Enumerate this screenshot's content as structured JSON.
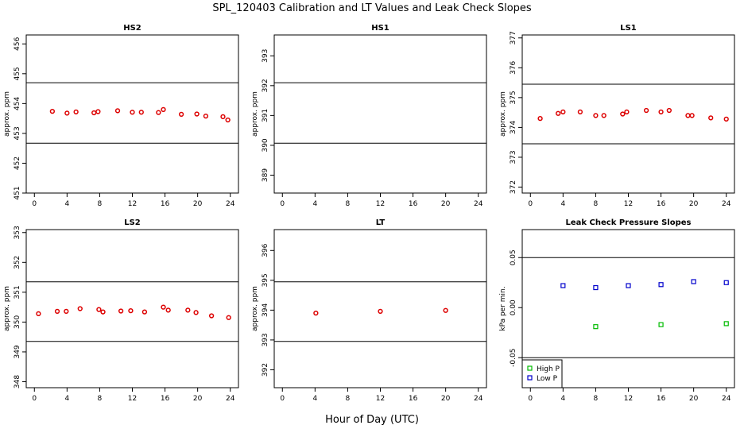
{
  "figure": {
    "title": "SPL_120403  Calibration and LT Values and Leak Check Slopes",
    "xlabel": "Hour of Day (UTC)"
  },
  "chart_data": [
    {
      "type": "scatter",
      "title": "HS2",
      "ylabel": "approx. ppm",
      "xlim": [
        -1,
        25
      ],
      "ylim": [
        451,
        456.3
      ],
      "xticks": [
        0,
        4,
        8,
        12,
        16,
        20,
        24
      ],
      "yticks": [
        451,
        452,
        453,
        454,
        455,
        456
      ],
      "hlines": [
        454.7,
        452.67
      ],
      "series": [
        {
          "marker": "circle",
          "color": "#dd0000",
          "points": [
            [
              2.2,
              453.74
            ],
            [
              4,
              453.68
            ],
            [
              5.1,
              453.72
            ],
            [
              7.3,
              453.69
            ],
            [
              7.8,
              453.73
            ],
            [
              10.2,
              453.76
            ],
            [
              12,
              453.71
            ],
            [
              13.1,
              453.71
            ],
            [
              15.2,
              453.7
            ],
            [
              15.8,
              453.8
            ],
            [
              18,
              453.64
            ],
            [
              19.9,
              453.65
            ],
            [
              21,
              453.58
            ],
            [
              23.1,
              453.56
            ],
            [
              23.7,
              453.45
            ]
          ]
        }
      ]
    },
    {
      "type": "scatter",
      "title": "HS1",
      "ylabel": "approx. ppm",
      "xlim": [
        -1,
        25
      ],
      "ylim": [
        388.4,
        393.7
      ],
      "xticks": [
        0,
        4,
        8,
        12,
        16,
        20,
        24
      ],
      "yticks": [
        389,
        390,
        391,
        392,
        393
      ],
      "hlines": [
        392.1,
        390.07
      ],
      "series": []
    },
    {
      "type": "scatter",
      "title": "LS1",
      "ylabel": "approx. ppm",
      "xlim": [
        -1,
        25
      ],
      "ylim": [
        371.8,
        377.1
      ],
      "xticks": [
        0,
        4,
        8,
        12,
        16,
        20,
        24
      ],
      "yticks": [
        372,
        373,
        374,
        375,
        376,
        377
      ],
      "hlines": [
        375.45,
        373.45
      ],
      "series": [
        {
          "marker": "circle",
          "color": "#dd0000",
          "points": [
            [
              1.2,
              374.3
            ],
            [
              3.4,
              374.47
            ],
            [
              4,
              374.52
            ],
            [
              6.1,
              374.52
            ],
            [
              8,
              374.4
            ],
            [
              9,
              374.4
            ],
            [
              11.3,
              374.45
            ],
            [
              11.8,
              374.52
            ],
            [
              14.2,
              374.57
            ],
            [
              16,
              374.52
            ],
            [
              17,
              374.57
            ],
            [
              19.3,
              374.4
            ],
            [
              19.8,
              374.4
            ],
            [
              22.1,
              374.32
            ],
            [
              24,
              374.28
            ]
          ]
        }
      ]
    },
    {
      "type": "scatter",
      "title": "LS2",
      "ylabel": "approx. ppm",
      "xlim": [
        -1,
        25
      ],
      "ylim": [
        347.8,
        353.1
      ],
      "xticks": [
        0,
        4,
        8,
        12,
        16,
        20,
        24
      ],
      "yticks": [
        348,
        349,
        350,
        351,
        352,
        353
      ],
      "hlines": [
        351.35,
        349.35
      ],
      "series": [
        {
          "marker": "circle",
          "color": "#dd0000",
          "points": [
            [
              0.5,
              350.28
            ],
            [
              2.8,
              350.36
            ],
            [
              3.9,
              350.36
            ],
            [
              5.6,
              350.45
            ],
            [
              7.9,
              350.42
            ],
            [
              8.4,
              350.34
            ],
            [
              10.6,
              350.37
            ],
            [
              11.8,
              350.38
            ],
            [
              13.5,
              350.34
            ],
            [
              15.8,
              350.5
            ],
            [
              16.4,
              350.4
            ],
            [
              18.8,
              350.4
            ],
            [
              19.8,
              350.32
            ],
            [
              21.7,
              350.21
            ],
            [
              23.8,
              350.15
            ]
          ]
        }
      ]
    },
    {
      "type": "scatter",
      "title": "LT",
      "ylabel": "approx. ppm",
      "xlim": [
        -1,
        25
      ],
      "ylim": [
        391.4,
        396.7
      ],
      "xticks": [
        0,
        4,
        8,
        12,
        16,
        20,
        24
      ],
      "yticks": [
        392,
        393,
        394,
        395,
        396
      ],
      "hlines": [
        394.95,
        392.95
      ],
      "series": [
        {
          "marker": "circle",
          "color": "#dd0000",
          "points": [
            [
              4.1,
              393.9
            ],
            [
              12,
              393.96
            ],
            [
              20,
              393.99
            ]
          ]
        }
      ]
    },
    {
      "type": "scatter",
      "title": "Leak Check Pressure Slopes",
      "ylabel": "kPa per min.",
      "xlim": [
        -1,
        25
      ],
      "ylim": [
        -0.08,
        0.078
      ],
      "xticks": [
        0,
        4,
        8,
        12,
        16,
        20,
        24
      ],
      "yticks": [
        -0.05,
        0.0,
        0.05
      ],
      "ytick_labels": [
        "-0.05",
        "0.00",
        "0.05"
      ],
      "hlines": [
        0.05,
        -0.05
      ],
      "legend": {
        "position": "bottom-left",
        "entries": [
          "High P",
          "Low P"
        ]
      },
      "series": [
        {
          "name": "High P",
          "marker": "square",
          "color": "#00bb00",
          "points": [
            [
              8,
              -0.019
            ],
            [
              16,
              -0.017
            ],
            [
              24,
              -0.016
            ]
          ]
        },
        {
          "name": "Low P",
          "marker": "square",
          "color": "#0000cc",
          "points": [
            [
              4,
              0.022
            ],
            [
              8,
              0.02
            ],
            [
              12,
              0.022
            ],
            [
              16,
              0.023
            ],
            [
              20,
              0.026
            ],
            [
              24,
              0.025
            ]
          ]
        }
      ]
    }
  ]
}
